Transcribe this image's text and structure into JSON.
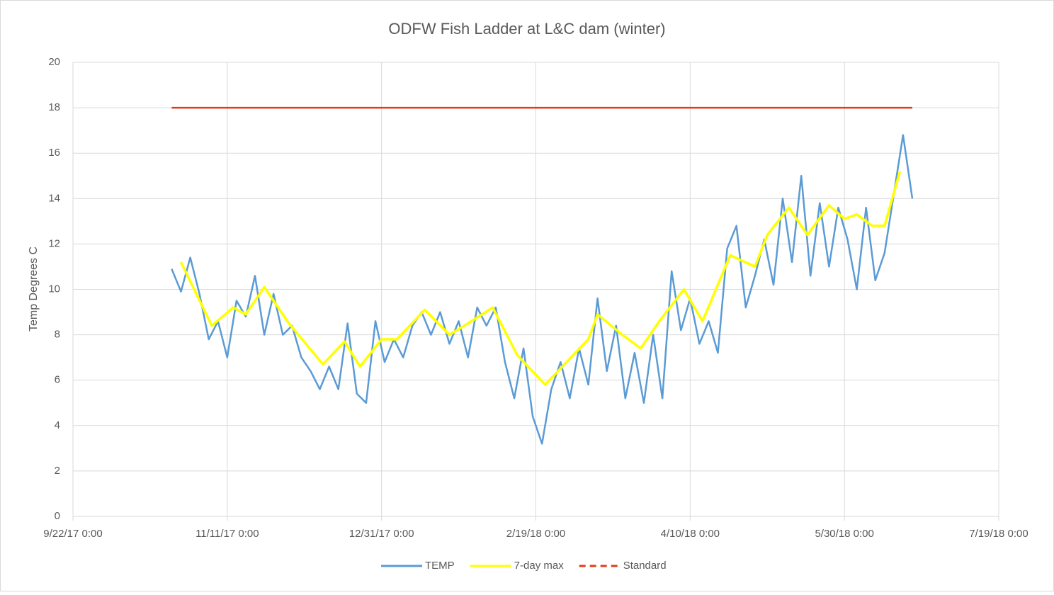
{
  "chart_data": {
    "type": "line",
    "title": "ODFW Fish Ladder at L&C dam (winter)",
    "y_label": "Temp Degrees C",
    "xlim": [
      "2017-09-22",
      "2018-07-19"
    ],
    "xticks": [
      {
        "value": "2017-09-22",
        "label": "9/22/17 0:00"
      },
      {
        "value": "2017-11-11",
        "label": "11/11/17 0:00"
      },
      {
        "value": "2017-12-31",
        "label": "12/31/17 0:00"
      },
      {
        "value": "2018-02-19",
        "label": "2/19/18 0:00"
      },
      {
        "value": "2018-04-10",
        "label": "4/10/18 0:00"
      },
      {
        "value": "2018-05-30",
        "label": "5/30/18 0:00"
      },
      {
        "value": "2018-07-19",
        "label": "7/19/18 0:00"
      }
    ],
    "ylim": [
      0,
      20
    ],
    "yticks": [
      0,
      2,
      4,
      6,
      8,
      10,
      12,
      14,
      16,
      18,
      20
    ],
    "grid": true,
    "series": [
      {
        "name": "TEMP",
        "color": "#5b9bd5",
        "x": [
          "2017-10-24",
          "2017-10-27",
          "2017-10-30",
          "2017-11-02",
          "2017-11-05",
          "2017-11-08",
          "2017-11-11",
          "2017-11-14",
          "2017-11-17",
          "2017-11-20",
          "2017-11-23",
          "2017-11-26",
          "2017-11-29",
          "2017-12-02",
          "2017-12-05",
          "2017-12-08",
          "2017-12-11",
          "2017-12-14",
          "2017-12-17",
          "2017-12-20",
          "2017-12-23",
          "2017-12-26",
          "2017-12-29",
          "2018-01-01",
          "2018-01-04",
          "2018-01-07",
          "2018-01-10",
          "2018-01-13",
          "2018-01-16",
          "2018-01-19",
          "2018-01-22",
          "2018-01-25",
          "2018-01-28",
          "2018-01-31",
          "2018-02-03",
          "2018-02-06",
          "2018-02-09",
          "2018-02-12",
          "2018-02-15",
          "2018-02-18",
          "2018-02-21",
          "2018-02-24",
          "2018-02-27",
          "2018-03-02",
          "2018-03-05",
          "2018-03-08",
          "2018-03-11",
          "2018-03-14",
          "2018-03-17",
          "2018-03-20",
          "2018-03-23",
          "2018-03-26",
          "2018-03-29",
          "2018-04-01",
          "2018-04-04",
          "2018-04-07",
          "2018-04-10",
          "2018-04-13",
          "2018-04-16",
          "2018-04-19",
          "2018-04-22",
          "2018-04-25",
          "2018-04-28",
          "2018-05-01",
          "2018-05-04",
          "2018-05-07",
          "2018-05-10",
          "2018-05-13",
          "2018-05-16",
          "2018-05-19",
          "2018-05-22",
          "2018-05-25",
          "2018-05-28",
          "2018-05-31",
          "2018-06-03",
          "2018-06-06",
          "2018-06-09",
          "2018-06-12",
          "2018-06-15",
          "2018-06-18",
          "2018-06-21"
        ],
        "values": [
          10.9,
          9.9,
          11.4,
          9.8,
          7.8,
          8.6,
          7.0,
          9.5,
          8.8,
          10.6,
          8.0,
          9.8,
          8.0,
          8.4,
          7.0,
          6.4,
          5.6,
          6.6,
          5.6,
          8.5,
          5.4,
          5.0,
          8.6,
          6.8,
          7.8,
          7.0,
          8.4,
          9.0,
          8.0,
          9.0,
          7.6,
          8.6,
          7.0,
          9.2,
          8.4,
          9.2,
          6.8,
          5.2,
          7.4,
          4.4,
          3.2,
          5.6,
          6.8,
          5.2,
          7.4,
          5.8,
          9.6,
          6.4,
          8.4,
          5.2,
          7.2,
          5.0,
          8.0,
          5.2,
          10.8,
          8.2,
          9.6,
          7.6,
          8.6,
          7.2,
          11.8,
          12.8,
          9.2,
          10.6,
          12.2,
          10.2,
          14.0,
          11.2,
          15.0,
          10.6,
          13.8,
          11.0,
          13.6,
          12.2,
          10.0,
          13.6,
          10.4,
          11.6,
          14.2,
          16.8,
          14.0
        ]
      },
      {
        "name": "7-day max",
        "color": "#ffff00",
        "x": [
          "2017-10-27",
          "2017-11-06",
          "2017-11-13",
          "2017-11-17",
          "2017-11-23",
          "2017-12-01",
          "2017-12-12",
          "2017-12-19",
          "2017-12-24",
          "2017-12-31",
          "2018-01-05",
          "2018-01-14",
          "2018-01-22",
          "2018-01-28",
          "2018-02-05",
          "2018-02-13",
          "2018-02-22",
          "2018-03-08",
          "2018-03-11",
          "2018-03-19",
          "2018-03-25",
          "2018-03-31",
          "2018-04-08",
          "2018-04-14",
          "2018-04-23",
          "2018-05-01",
          "2018-05-05",
          "2018-05-12",
          "2018-05-18",
          "2018-05-25",
          "2018-05-30",
          "2018-06-03",
          "2018-06-08",
          "2018-06-12",
          "2018-06-17"
        ],
        "values": [
          11.2,
          8.4,
          9.2,
          8.9,
          10.1,
          8.5,
          6.7,
          7.7,
          6.6,
          7.8,
          7.8,
          9.1,
          8.0,
          8.5,
          9.2,
          7.1,
          5.8,
          7.8,
          8.9,
          8.0,
          7.4,
          8.6,
          10.0,
          8.6,
          11.5,
          11.0,
          12.4,
          13.6,
          12.4,
          13.7,
          13.1,
          13.3,
          12.8,
          12.8,
          15.2
        ]
      },
      {
        "name": "Standard",
        "color": "#e03c1a",
        "x": [
          "2017-10-24",
          "2018-06-21"
        ],
        "values": [
          18,
          18
        ]
      }
    ]
  }
}
